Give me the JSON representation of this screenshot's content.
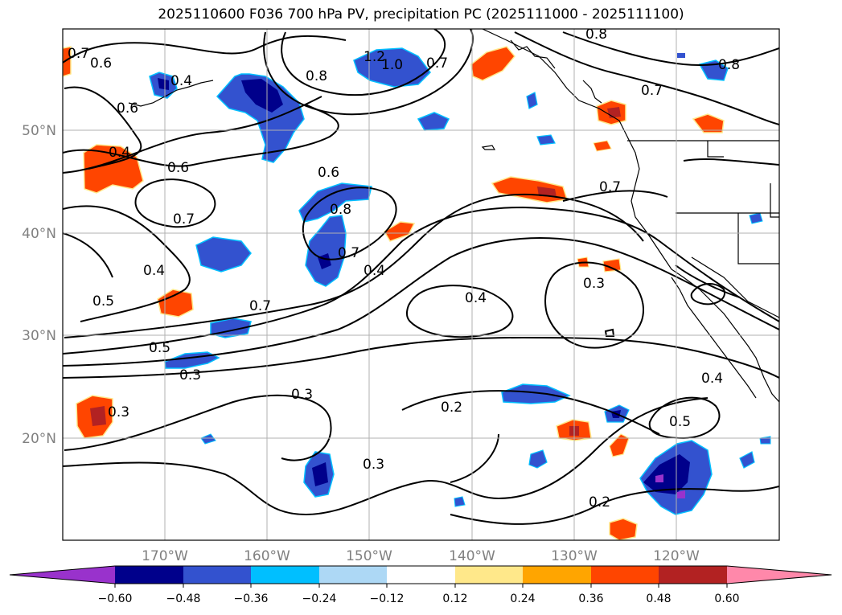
{
  "title": "2025110600 F036 700 hPa PV, precipitation PC (2025111000 - 2025111100)",
  "map": {
    "lat_labels": [
      "50°N",
      "40°N",
      "30°N",
      "20°N"
    ],
    "lon_labels": [
      "170°W",
      "160°W",
      "150°W",
      "140°W",
      "130°W",
      "120°W"
    ],
    "contour_labels": [
      {
        "id": "c1",
        "text": "0.7"
      },
      {
        "id": "c2",
        "text": "0.6"
      },
      {
        "id": "c3",
        "text": "0.4"
      },
      {
        "id": "c4",
        "text": "1.2"
      },
      {
        "id": "c5",
        "text": "1.0"
      },
      {
        "id": "c6",
        "text": "0.8"
      },
      {
        "id": "c7",
        "text": "0.7"
      },
      {
        "id": "c8",
        "text": "0.8"
      },
      {
        "id": "c9",
        "text": "0.6"
      },
      {
        "id": "c10",
        "text": "0.4"
      },
      {
        "id": "c11",
        "text": "0.6"
      },
      {
        "id": "c12",
        "text": "0.7"
      },
      {
        "id": "c13",
        "text": "0.6"
      },
      {
        "id": "c14",
        "text": "0.8"
      },
      {
        "id": "c15",
        "text": "0.7"
      },
      {
        "id": "c16",
        "text": "0.4"
      },
      {
        "id": "c17",
        "text": "0.4"
      },
      {
        "id": "c18",
        "text": "0.5"
      },
      {
        "id": "c19",
        "text": "0.7"
      },
      {
        "id": "c20",
        "text": "0.5"
      },
      {
        "id": "c21",
        "text": "0.3"
      },
      {
        "id": "c22",
        "text": "0.4"
      },
      {
        "id": "c23",
        "text": "0.3"
      },
      {
        "id": "c24",
        "text": "0.3"
      },
      {
        "id": "c25",
        "text": "0.2"
      },
      {
        "id": "c26",
        "text": "0.3"
      },
      {
        "id": "c27",
        "text": "0.4"
      },
      {
        "id": "c28",
        "text": "0.5"
      },
      {
        "id": "c29",
        "text": "0.2"
      },
      {
        "id": "c30",
        "text": "0.7"
      },
      {
        "id": "c31",
        "text": "0.8"
      },
      {
        "id": "c32",
        "text": "0.7"
      }
    ]
  },
  "colorbar": {
    "tick_labels": [
      "−0.60",
      "−0.48",
      "−0.36",
      "−0.24",
      "−0.12",
      "0.12",
      "0.24",
      "0.36",
      "0.48",
      "0.60"
    ],
    "colors": [
      "#9932cc",
      "#00008b",
      "#3352cf",
      "#00bfff",
      "#add8f5",
      "#ffffff",
      "#ffe88a",
      "#ffa500",
      "#ff4500",
      "#b22222",
      "#ff88aa"
    ]
  }
}
